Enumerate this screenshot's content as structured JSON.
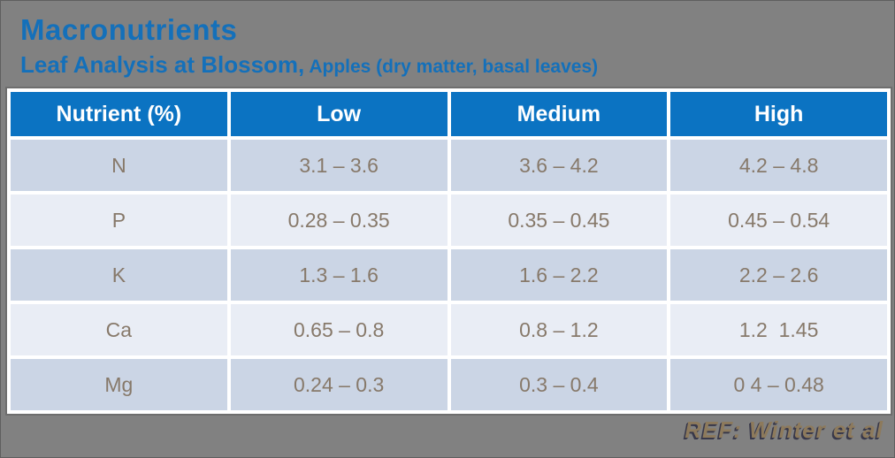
{
  "title": "Macronutrients",
  "subtitle": {
    "main": "Leaf Analysis at Blossom,",
    "secondary": " Apples (dry matter, basal leaves)"
  },
  "table": {
    "columns": [
      "Nutrient (%)",
      "Low",
      "Medium",
      "High"
    ],
    "rows": [
      {
        "nutrient": "N",
        "low": "3.1 – 3.6",
        "medium": "3.6 – 4.2",
        "high": "4.2 – 4.8"
      },
      {
        "nutrient": "P",
        "low": "0.28 – 0.35",
        "medium": "0.35 – 0.45",
        "high": "0.45 – 0.54"
      },
      {
        "nutrient": "K",
        "low": "1.3 – 1.6",
        "medium": "1.6 – 2.2",
        "high": "2.2 – 2.6"
      },
      {
        "nutrient": "Ca",
        "low": "0.65 – 0.8",
        "medium": "0.8 – 1.2",
        "high": "1.2  1.45"
      },
      {
        "nutrient": "Mg",
        "low": "0.24 – 0.3",
        "medium": "0.3 – 0.4",
        "high": "0 4 – 0.48"
      }
    ]
  },
  "footer": {
    "reference": "REF: Winter et al"
  },
  "colors": {
    "background_gray": "#818181",
    "title_blue": "#1470ba",
    "header_blue": "#0b73c2",
    "row_dark": "#cbd5e5",
    "row_light": "#e9edf5",
    "data_text": "#87796a",
    "reference_tan": "#8d7a5c"
  }
}
